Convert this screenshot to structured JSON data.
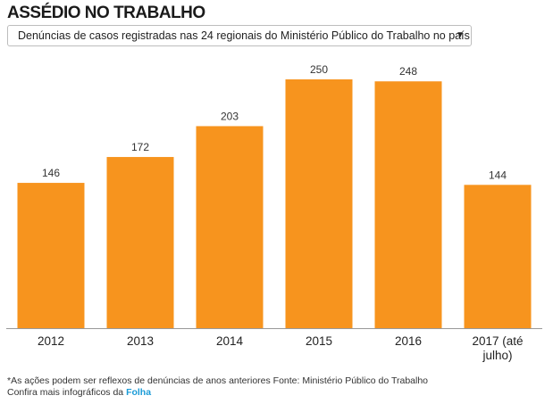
{
  "header": {
    "title": "ASSÉDIO NO TRABALHO"
  },
  "filter": {
    "selected": "Denúncias de casos registradas nas 24 regionais do Ministério Público do Trabalho no país",
    "caret": "▼"
  },
  "chart_data": {
    "type": "bar",
    "categories": [
      "2012",
      "2013",
      "2014",
      "2015",
      "2016",
      "2017 (até julho)"
    ],
    "values": [
      146,
      172,
      203,
      250,
      248,
      144
    ],
    "data_labels": [
      "146",
      "172",
      "203",
      "250",
      "248",
      "144"
    ],
    "title": "",
    "xlabel": "",
    "ylabel": "",
    "ylim": [
      0,
      250
    ],
    "grid": false,
    "legend": "none",
    "bar_color": "#f7941e",
    "baseline_color": "#999999"
  },
  "footer": {
    "note": "*As ações podem ser reflexos de denúncias de anos anteriores Fonte: Ministério Público do Trabalho",
    "more_prefix": "Confira mais infográficos da ",
    "more_link": "Folha",
    "link_color": "#1a9bd7"
  }
}
